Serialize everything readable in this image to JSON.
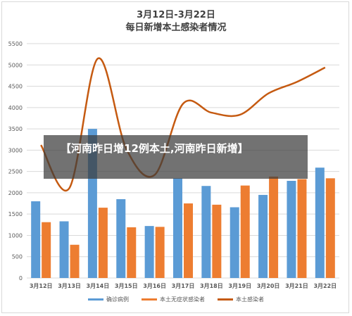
{
  "title": "3月12日-3月22日",
  "subtitle": "每日新增本土感染者情况",
  "banner": "【河南昨日增12例本土,河南昨日新增】",
  "colors": {
    "confirmed": "#5b9bd5",
    "asymptomatic": "#ed7d31",
    "local_line": "#c55a11",
    "grid": "#d9d9d9",
    "axis_text": "#595959"
  },
  "chart_data": {
    "type": "bar",
    "categories": [
      "3月12日",
      "3月13日",
      "3月14日",
      "3月15日",
      "3月16日",
      "3月17日",
      "3月18日",
      "3月19日",
      "3月20日",
      "3月21日",
      "3月22日"
    ],
    "ylim": [
      0,
      5500
    ],
    "yticks": [
      0,
      500,
      1000,
      1500,
      2000,
      2500,
      3000,
      3500,
      4000,
      4500,
      5000,
      5500
    ],
    "grid": true,
    "legend_position": "bottom",
    "series": [
      {
        "name": "确诊病例",
        "kind": "bar",
        "values": [
          1800,
          1330,
          3500,
          1850,
          1220,
          2340,
          2160,
          1660,
          1950,
          2280,
          2590
        ]
      },
      {
        "name": "本土无症状感染者",
        "kind": "bar",
        "values": [
          1310,
          780,
          1650,
          1190,
          1200,
          1750,
          1720,
          2170,
          2380,
          2320,
          2340
        ]
      },
      {
        "name": "本土感染者",
        "kind": "line",
        "values": [
          3120,
          2110,
          5150,
          3040,
          2420,
          4090,
          3880,
          3830,
          4330,
          4600,
          4940
        ]
      }
    ]
  }
}
